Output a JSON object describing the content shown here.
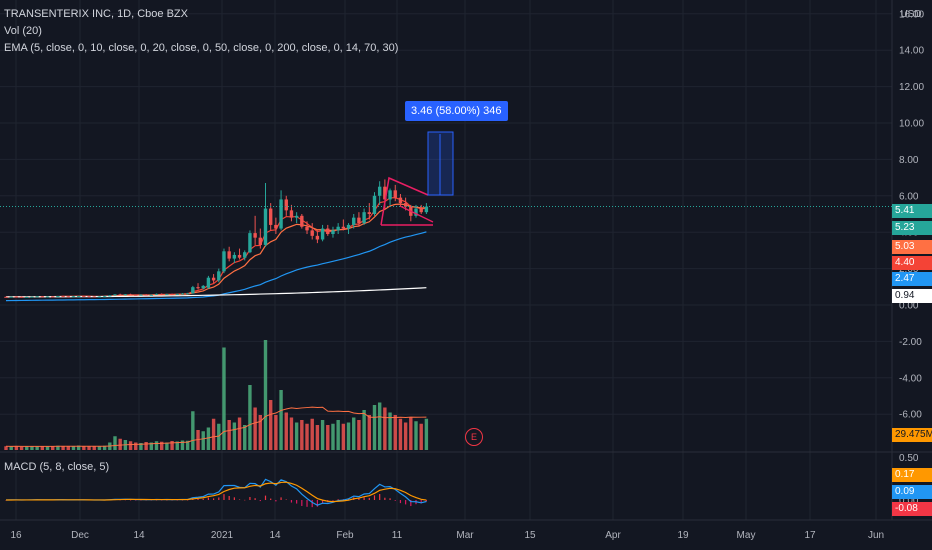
{
  "legend": {
    "symbol": "TRANSENTERIX INC, 1D, Cboe BZX",
    "volume": "Vol (20)",
    "ema": "EMA (5, close, 0, 10, close, 0, 20, close, 0, 50, close, 0, 200, close, 0, 14, 70, 30)",
    "macd": "MACD (5, 8, close, 5)"
  },
  "currency": "USD",
  "measure_label": "3.46 (58.00%) 346",
  "earnings_marker": "E",
  "colors": {
    "background": "#131722",
    "grid": "#1f2430",
    "up": "#26a69a",
    "up_volume": "#4caf7d",
    "down": "#ef5350",
    "ema_red": "#f44336",
    "ema_orange": "#ff7043",
    "ema_blue": "#2196f3",
    "ema_white": "#ffffff",
    "pattern": "#e91e63",
    "measure": "#2962ff",
    "macd_line": "#2196f3",
    "signal_line": "#ff9800",
    "hist_pos": "#f23645",
    "hist_neg": "#d81b60",
    "axis_text": "#b2b5be"
  },
  "chart_data": {
    "type": "candlestick",
    "title": "TRANSENTERIX INC, 1D, Cboe BZX",
    "price_axis": {
      "labels": [
        "16.00",
        "14.00",
        "12.00",
        "10.00",
        "8.00",
        "6.00",
        "4.00",
        "2.00",
        "0.00",
        "-2.00",
        "-4.00",
        "-6.00"
      ],
      "values": [
        16,
        14,
        12,
        10,
        8,
        6,
        4,
        2,
        0,
        -2,
        -4,
        -6
      ],
      "range": [
        -8,
        16.8
      ]
    },
    "macd_axis": {
      "labels": [
        "0.50",
        "0.00"
      ],
      "values": [
        0.5,
        0
      ],
      "range": [
        -0.1,
        0.52
      ]
    },
    "time_axis": [
      "16",
      "Dec",
      "14",
      "2021",
      "14",
      "Feb",
      "11",
      "Mar",
      "15",
      "Apr",
      "19",
      "May",
      "17",
      "Jun"
    ],
    "price_badges": [
      {
        "value": "5.41",
        "color": "#26a69a"
      },
      {
        "value": "5.23",
        "color": "#26a69a"
      },
      {
        "value": "5.03",
        "color": "#ff7043"
      },
      {
        "value": "4.40",
        "color": "#f44336"
      },
      {
        "value": "2.47",
        "color": "#2196f3"
      },
      {
        "value": "0.94",
        "color": "#ffffff"
      }
    ],
    "volume_badge": "29.475M",
    "macd_badges": [
      {
        "value": "0.17",
        "color": "#ff9800"
      },
      {
        "value": "0.09",
        "color": "#2196f3"
      },
      {
        "value": "-0.08",
        "color": "#f23645"
      }
    ],
    "last_price": 5.41,
    "candles": [
      [
        0.45,
        0.46,
        0.43,
        0.44
      ],
      [
        0.44,
        0.47,
        0.43,
        0.46
      ],
      [
        0.46,
        0.47,
        0.44,
        0.45
      ],
      [
        0.45,
        0.46,
        0.43,
        0.44
      ],
      [
        0.44,
        0.46,
        0.43,
        0.45
      ],
      [
        0.45,
        0.47,
        0.44,
        0.46
      ],
      [
        0.46,
        0.49,
        0.45,
        0.48
      ],
      [
        0.48,
        0.49,
        0.45,
        0.46
      ],
      [
        0.46,
        0.48,
        0.45,
        0.47
      ],
      [
        0.47,
        0.48,
        0.45,
        0.46
      ],
      [
        0.46,
        0.5,
        0.45,
        0.49
      ],
      [
        0.49,
        0.51,
        0.47,
        0.48
      ],
      [
        0.48,
        0.49,
        0.46,
        0.47
      ],
      [
        0.47,
        0.49,
        0.46,
        0.48
      ],
      [
        0.48,
        0.5,
        0.47,
        0.49
      ],
      [
        0.49,
        0.5,
        0.47,
        0.48
      ],
      [
        0.48,
        0.49,
        0.46,
        0.47
      ],
      [
        0.47,
        0.48,
        0.45,
        0.46
      ],
      [
        0.46,
        0.48,
        0.45,
        0.47
      ],
      [
        0.47,
        0.49,
        0.46,
        0.48
      ],
      [
        0.48,
        0.55,
        0.47,
        0.53
      ],
      [
        0.53,
        0.6,
        0.51,
        0.58
      ],
      [
        0.58,
        0.62,
        0.52,
        0.54
      ],
      [
        0.54,
        0.6,
        0.53,
        0.59
      ],
      [
        0.59,
        0.62,
        0.55,
        0.56
      ],
      [
        0.56,
        0.58,
        0.52,
        0.54
      ],
      [
        0.54,
        0.59,
        0.53,
        0.57
      ],
      [
        0.57,
        0.6,
        0.54,
        0.55
      ],
      [
        0.55,
        0.58,
        0.53,
        0.56
      ],
      [
        0.56,
        0.63,
        0.55,
        0.61
      ],
      [
        0.61,
        0.64,
        0.56,
        0.58
      ],
      [
        0.58,
        0.62,
        0.55,
        0.6
      ],
      [
        0.6,
        0.63,
        0.57,
        0.59
      ],
      [
        0.59,
        0.62,
        0.56,
        0.61
      ],
      [
        0.61,
        0.66,
        0.58,
        0.63
      ],
      [
        0.63,
        0.67,
        0.6,
        0.64
      ],
      [
        0.64,
        1.05,
        0.62,
        0.98
      ],
      [
        0.98,
        1.2,
        0.85,
        0.92
      ],
      [
        0.92,
        1.1,
        0.85,
        1.05
      ],
      [
        0.95,
        1.6,
        0.9,
        1.5
      ],
      [
        1.5,
        1.7,
        1.2,
        1.35
      ],
      [
        1.35,
        2.0,
        1.25,
        1.85
      ],
      [
        1.85,
        3.1,
        1.75,
        2.95
      ],
      [
        2.95,
        3.2,
        2.4,
        2.55
      ],
      [
        2.55,
        2.9,
        2.3,
        2.75
      ],
      [
        2.75,
        3.1,
        2.5,
        2.6
      ],
      [
        2.6,
        3.0,
        2.45,
        2.9
      ],
      [
        2.9,
        4.1,
        2.85,
        3.95
      ],
      [
        3.95,
        4.9,
        3.3,
        3.7
      ],
      [
        3.7,
        4.2,
        3.1,
        3.3
      ],
      [
        3.3,
        6.7,
        3.2,
        5.3
      ],
      [
        5.3,
        5.6,
        4.1,
        4.4
      ],
      [
        4.4,
        4.8,
        3.9,
        4.2
      ],
      [
        4.2,
        6.3,
        4.1,
        5.8
      ],
      [
        5.8,
        6.0,
        4.9,
        5.2
      ],
      [
        5.2,
        5.5,
        4.6,
        4.8
      ],
      [
        4.8,
        5.1,
        4.5,
        4.9
      ],
      [
        4.9,
        5.0,
        4.2,
        4.3
      ],
      [
        4.3,
        4.6,
        3.9,
        4.1
      ],
      [
        4.1,
        4.5,
        3.6,
        3.8
      ],
      [
        3.8,
        4.1,
        3.4,
        3.6
      ],
      [
        3.6,
        4.4,
        3.5,
        4.2
      ],
      [
        4.2,
        4.4,
        3.8,
        3.9
      ],
      [
        3.9,
        4.3,
        3.7,
        4.1
      ],
      [
        4.1,
        4.5,
        3.9,
        4.3
      ],
      [
        4.3,
        4.7,
        4.1,
        4.2
      ],
      [
        4.2,
        4.5,
        3.9,
        4.4
      ],
      [
        4.4,
        5.0,
        4.2,
        4.8
      ],
      [
        4.8,
        5.1,
        4.3,
        4.5
      ],
      [
        4.5,
        5.3,
        4.4,
        5.1
      ],
      [
        5.1,
        5.6,
        4.7,
        5.0
      ],
      [
        5.0,
        6.2,
        4.9,
        6.0
      ],
      [
        6.0,
        6.8,
        5.5,
        6.5
      ],
      [
        6.5,
        6.9,
        5.3,
        5.8
      ],
      [
        5.8,
        6.4,
        5.5,
        6.3
      ],
      [
        6.3,
        6.6,
        5.7,
        5.9
      ],
      [
        5.9,
        6.1,
        5.4,
        5.6
      ],
      [
        5.6,
        5.9,
        5.2,
        5.4
      ],
      [
        5.4,
        5.5,
        4.6,
        4.9
      ],
      [
        4.9,
        5.5,
        4.8,
        5.3
      ],
      [
        5.3,
        5.5,
        5.0,
        5.1
      ],
      [
        5.1,
        5.6,
        5.0,
        5.41
      ]
    ],
    "volume": [
      0.15,
      0.14,
      0.16,
      0.13,
      0.14,
      0.15,
      0.15,
      0.14,
      0.16,
      0.15,
      0.17,
      0.15,
      0.14,
      0.15,
      0.18,
      0.16,
      0.15,
      0.14,
      0.15,
      0.17,
      0.3,
      0.55,
      0.45,
      0.4,
      0.35,
      0.3,
      0.28,
      0.32,
      0.3,
      0.35,
      0.33,
      0.3,
      0.36,
      0.34,
      0.38,
      0.37,
      1.55,
      0.8,
      0.75,
      0.9,
      1.25,
      1.05,
      4.1,
      1.2,
      1.1,
      1.3,
      1.0,
      2.6,
      1.7,
      1.4,
      4.4,
      2.0,
      1.4,
      2.4,
      1.5,
      1.3,
      1.1,
      1.2,
      1.05,
      1.25,
      1.0,
      1.2,
      1.0,
      1.05,
      1.2,
      1.05,
      1.1,
      1.3,
      1.2,
      1.6,
      1.4,
      1.8,
      1.9,
      1.7,
      1.5,
      1.4,
      1.25,
      1.1,
      1.3,
      1.15,
      1.05,
      1.25
    ]
  }
}
